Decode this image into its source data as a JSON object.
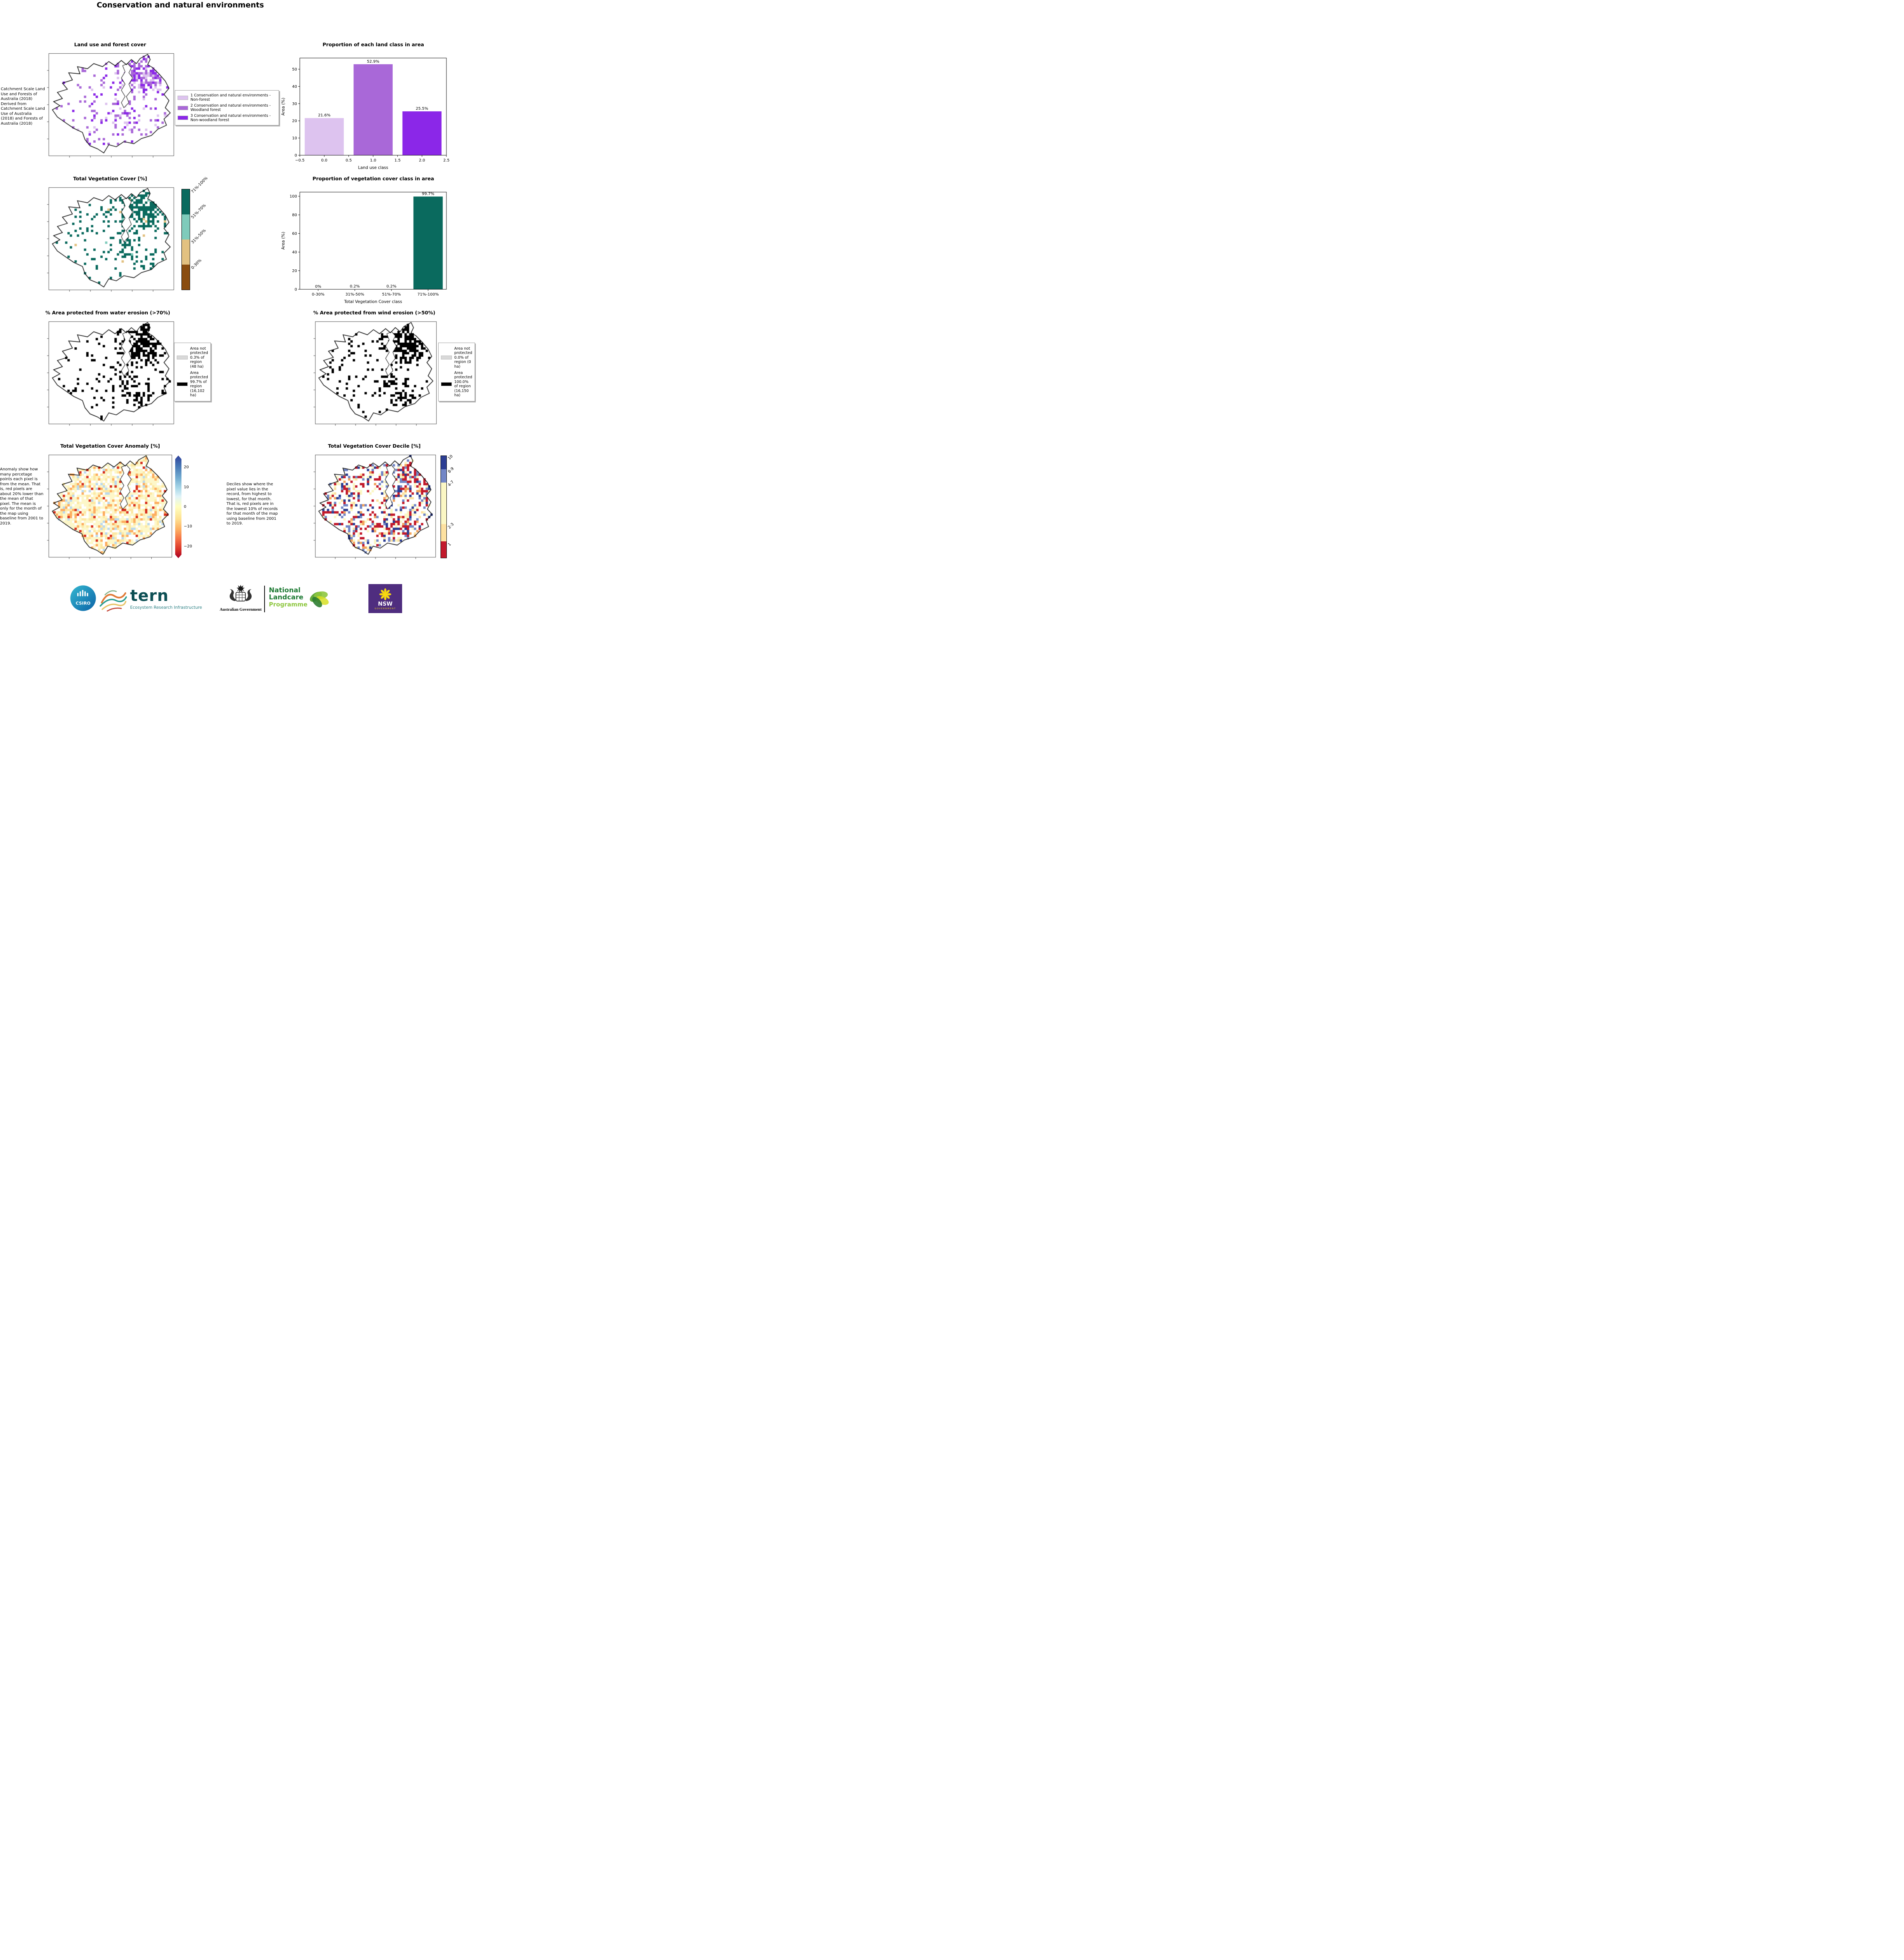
{
  "page": {
    "title": "Conservation and natural environments"
  },
  "land_use": {
    "title": "Land use and forest cover",
    "caption": "Catchment Scale Land Use and Forests of Australia (2018) Derived from Catchment Scale Land Use of Australia (2018) and Forests of Australia (2018)",
    "legend": [
      {
        "label": "1 Conservation and natural environments - Non-forest",
        "color": "#ddc3ef"
      },
      {
        "label": "2 Conservation and natural environments - Woodland forest",
        "color": "#a968d8"
      },
      {
        "label": "3 Conservation and natural environments - Non-woodland forest",
        "color": "#8b27e8"
      }
    ],
    "map_palette": [
      {
        "c": "#a968d8",
        "w": 0.5
      },
      {
        "c": "#8b27e8",
        "w": 0.27
      },
      {
        "c": "#ddc3ef",
        "w": 0.23
      }
    ]
  },
  "veg_cover": {
    "title": "Total Vegetation Cover [%]",
    "colorbar": [
      {
        "label": "71%-100%",
        "color": "#0a6a5e",
        "frac": 0.25
      },
      {
        "label": "51%-70%",
        "color": "#7fcbbb",
        "frac": 0.25
      },
      {
        "label": "31%-50%",
        "color": "#e2c181",
        "frac": 0.25
      },
      {
        "label": "0-30%",
        "color": "#8a4d10",
        "frac": 0.25
      }
    ],
    "map_palette": [
      {
        "c": "#0a6a5e",
        "w": 0.95
      },
      {
        "c": "#7fcbbb",
        "w": 0.02
      },
      {
        "c": "#e2c181",
        "w": 0.03
      }
    ]
  },
  "water_erosion": {
    "title": "% Area protected from water erosion (>70%)",
    "legend": [
      {
        "label": "Area not protected 0.3% of region (48 ha)",
        "color": "#d9d9d9"
      },
      {
        "label": "Area protected 99.7% of region (16,102 ha)",
        "color": "#000000"
      }
    ],
    "map_palette": [
      {
        "c": "#000000",
        "w": 1
      }
    ]
  },
  "wind_erosion": {
    "title": "% Area protected from wind erosion (>50%)",
    "legend": [
      {
        "label": "Area not protected 0.0% of region (0 ha)",
        "color": "#d9d9d9"
      },
      {
        "label": "Area protected 100.0% of region (16,150 ha)",
        "color": "#000000"
      }
    ],
    "map_palette": [
      {
        "c": "#000000",
        "w": 1
      }
    ]
  },
  "anomaly": {
    "title": "Total Vegetation Cover Anomaly [%]",
    "caption": "Anomaly show how many percetage points each pixel is from the mean. That is, red pixels are about 20% lower than the mean of that pixel. The mean is only for the month of the map using baseline from 2001 to 2019.",
    "colorbar_ticks": [
      {
        "v": 20,
        "label": "20"
      },
      {
        "v": 10,
        "label": "10"
      },
      {
        "v": 0,
        "label": "0"
      },
      {
        "v": -10,
        "label": "−10"
      },
      {
        "v": -20,
        "label": "−20"
      }
    ],
    "map_palette": [
      {
        "c": "#fdf7c9",
        "w": 0.5
      },
      {
        "c": "#fde8a4",
        "w": 0.2
      },
      {
        "c": "#fdae61",
        "w": 0.13
      },
      {
        "c": "#d7301f",
        "w": 0.06
      },
      {
        "c": "#bcd9ec",
        "w": 0.06
      },
      {
        "c": "#ffffff",
        "w": 0.05
      }
    ]
  },
  "decile": {
    "title": "Total Vegetation Cover Decile [%]",
    "caption": "Deciles show where the pixel value lies in the record, from highest to lowest, for that month. That is, red pixels are in the lowest 10% of records for that month of the map using baseline from 2001 to 2019.",
    "colorbar": [
      {
        "label": "10",
        "color": "#2c3e93",
        "frac": 0.13
      },
      {
        "label": "8-9",
        "color": "#7286c6",
        "frac": 0.13
      },
      {
        "label": "4-7",
        "color": "#fbf7c4",
        "frac": 0.41
      },
      {
        "label": "2-3",
        "color": "#fde1a0",
        "frac": 0.17
      },
      {
        "label": "1",
        "color": "#c21a2c",
        "frac": 0.16
      }
    ],
    "map_palette": [
      {
        "c": "#c21a2c",
        "w": 0.33
      },
      {
        "c": "#fbf7c4",
        "w": 0.2
      },
      {
        "c": "#fde1a0",
        "w": 0.09
      },
      {
        "c": "#7286c6",
        "w": 0.16
      },
      {
        "c": "#2c3e93",
        "w": 0.13
      },
      {
        "c": "#f2a25c",
        "w": 0.09
      }
    ]
  },
  "chart_data": [
    {
      "type": "bar",
      "title": "Proportion of each land class in area",
      "xlabel": "Land use class",
      "ylabel": "Area (%)",
      "x": [
        0,
        1,
        2
      ],
      "values": [
        21.6,
        52.9,
        25.5
      ],
      "bar_labels": [
        "21.6%",
        "52.9%",
        "25.5%"
      ],
      "colors": [
        "#ddc3ef",
        "#a968d8",
        "#8b27e8"
      ],
      "xlim": [
        -0.5,
        2.5
      ],
      "ylim": [
        0,
        56.5
      ],
      "xtick_vals": [
        -0.5,
        0,
        0.5,
        1,
        1.5,
        2,
        2.5
      ],
      "xticks": [
        "−0.5",
        "0.0",
        "0.5",
        "1.0",
        "1.5",
        "2.0",
        "2.5"
      ],
      "yticks": [
        0,
        10,
        20,
        30,
        40,
        50
      ],
      "grid": false,
      "legend_position": "none"
    },
    {
      "type": "bar",
      "title": "Proportion of vegetation cover class in area",
      "xlabel": "Total Vegetation Cover class",
      "ylabel": "Area (%)",
      "x": [
        0,
        1,
        2,
        3
      ],
      "categories": [
        "0-30%",
        "31%-50%",
        "51%-70%",
        "71%-100%"
      ],
      "values": [
        0,
        0.2,
        0.2,
        99.7
      ],
      "bar_labels": [
        "0%",
        "0.2%",
        "0.2%",
        "99.7%"
      ],
      "colors": [
        "#0a6a5e",
        "#0a6a5e",
        "#0a6a5e",
        "#0a6a5e"
      ],
      "xlim": [
        -0.5,
        3.5
      ],
      "ylim": [
        0,
        104.5
      ],
      "xtick_vals": [
        0,
        1,
        2,
        3
      ],
      "xticks": [
        "0-30%",
        "31%-50%",
        "51%-70%",
        "71%-100%"
      ],
      "yticks": [
        0,
        20,
        40,
        60,
        80,
        100
      ],
      "grid": false,
      "legend_position": "none"
    }
  ],
  "footer": {
    "csiro": "CSIRO",
    "tern": "tern",
    "tern_sub": "Ecosystem Research Infrastructure",
    "aus_gov": "Australian Government",
    "landcare_1": "National",
    "landcare_2": "Landcare",
    "landcare_3": "Programme",
    "nsw": "NSW",
    "nsw_sub": "GOVERNMENT"
  }
}
